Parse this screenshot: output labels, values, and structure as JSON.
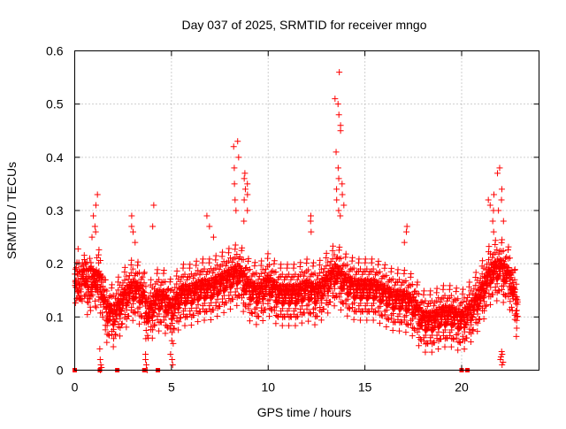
{
  "chart_data": {
    "type": "scatter",
    "title": "Day 037 of 2025, SRMTID for receiver mngo",
    "xlabel": "GPS time / hours",
    "ylabel": "SRMTID / TECUs",
    "xlim": [
      0,
      24
    ],
    "ylim": [
      0,
      0.6
    ],
    "x_ticks": [
      0,
      5,
      10,
      15,
      20
    ],
    "x_tick_labels": [
      "0",
      "5",
      "10",
      "15",
      "20"
    ],
    "y_ticks": [
      0,
      0.1,
      0.2,
      0.3,
      0.4,
      0.5,
      0.6
    ],
    "y_tick_labels": [
      "0",
      "0.1",
      "0.2",
      "0.3",
      "0.4",
      "0.5",
      "0.6"
    ],
    "grid": true,
    "marker": "plus",
    "series": [
      {
        "name": "SRMTID",
        "color": "#ff0000",
        "trend": [
          {
            "x": 0.0,
            "y": 0.16
          },
          {
            "x": 0.5,
            "y": 0.17
          },
          {
            "x": 1.0,
            "y": 0.15
          },
          {
            "x": 1.3,
            "y": 0.17
          },
          {
            "x": 1.6,
            "y": 0.11
          },
          {
            "x": 2.0,
            "y": 0.1
          },
          {
            "x": 2.5,
            "y": 0.13
          },
          {
            "x": 3.0,
            "y": 0.15
          },
          {
            "x": 3.5,
            "y": 0.14
          },
          {
            "x": 3.8,
            "y": 0.1
          },
          {
            "x": 4.2,
            "y": 0.13
          },
          {
            "x": 4.6,
            "y": 0.13
          },
          {
            "x": 5.0,
            "y": 0.11
          },
          {
            "x": 5.5,
            "y": 0.14
          },
          {
            "x": 6.0,
            "y": 0.14
          },
          {
            "x": 6.5,
            "y": 0.15
          },
          {
            "x": 7.0,
            "y": 0.15
          },
          {
            "x": 7.5,
            "y": 0.16
          },
          {
            "x": 8.0,
            "y": 0.17
          },
          {
            "x": 8.5,
            "y": 0.18
          },
          {
            "x": 9.0,
            "y": 0.15
          },
          {
            "x": 9.5,
            "y": 0.14
          },
          {
            "x": 10.0,
            "y": 0.16
          },
          {
            "x": 10.5,
            "y": 0.14
          },
          {
            "x": 11.0,
            "y": 0.14
          },
          {
            "x": 11.5,
            "y": 0.14
          },
          {
            "x": 12.0,
            "y": 0.15
          },
          {
            "x": 12.5,
            "y": 0.14
          },
          {
            "x": 13.0,
            "y": 0.16
          },
          {
            "x": 13.5,
            "y": 0.18
          },
          {
            "x": 14.0,
            "y": 0.16
          },
          {
            "x": 14.5,
            "y": 0.15
          },
          {
            "x": 15.0,
            "y": 0.15
          },
          {
            "x": 15.5,
            "y": 0.15
          },
          {
            "x": 16.0,
            "y": 0.14
          },
          {
            "x": 16.5,
            "y": 0.13
          },
          {
            "x": 17.0,
            "y": 0.13
          },
          {
            "x": 17.5,
            "y": 0.12
          },
          {
            "x": 18.0,
            "y": 0.09
          },
          {
            "x": 18.5,
            "y": 0.09
          },
          {
            "x": 19.0,
            "y": 0.1
          },
          {
            "x": 19.5,
            "y": 0.1
          },
          {
            "x": 20.0,
            "y": 0.09
          },
          {
            "x": 20.5,
            "y": 0.11
          },
          {
            "x": 21.0,
            "y": 0.14
          },
          {
            "x": 21.5,
            "y": 0.18
          },
          {
            "x": 22.0,
            "y": 0.19
          },
          {
            "x": 22.5,
            "y": 0.17
          },
          {
            "x": 22.9,
            "y": 0.11
          }
        ],
        "spread": 0.04,
        "peaks": [
          {
            "x": 1.0,
            "values": [
              0.33,
              0.31,
              0.29,
              0.27,
              0.25,
              0.26
            ]
          },
          {
            "x": 3.0,
            "values": [
              0.29,
              0.27,
              0.26,
              0.24
            ]
          },
          {
            "x": 4.1,
            "values": [
              0.31,
              0.27
            ]
          },
          {
            "x": 7.0,
            "values": [
              0.29,
              0.27,
              0.25
            ]
          },
          {
            "x": 8.3,
            "values": [
              0.43,
              0.42,
              0.4,
              0.38,
              0.35,
              0.32,
              0.3
            ]
          },
          {
            "x": 8.8,
            "values": [
              0.37,
              0.36,
              0.35,
              0.34,
              0.33,
              0.32,
              0.3,
              0.28
            ]
          },
          {
            "x": 12.3,
            "values": [
              0.29,
              0.28,
              0.26
            ]
          },
          {
            "x": 13.6,
            "values": [
              0.56,
              0.51,
              0.5,
              0.48,
              0.46,
              0.45,
              0.41,
              0.38,
              0.36,
              0.34,
              0.32,
              0.3
            ]
          },
          {
            "x": 13.8,
            "values": [
              0.35,
              0.33,
              0.31,
              0.29
            ]
          },
          {
            "x": 17.0,
            "values": [
              0.27,
              0.26,
              0.24
            ]
          },
          {
            "x": 21.5,
            "values": [
              0.33,
              0.32,
              0.31,
              0.3,
              0.28,
              0.26
            ]
          },
          {
            "x": 22.0,
            "values": [
              0.38,
              0.37,
              0.34,
              0.32,
              0.3,
              0.28
            ]
          }
        ],
        "low_values": [
          {
            "x": 1.3,
            "values": [
              0.01,
              0.005,
              0.0,
              0.02,
              0.04
            ]
          },
          {
            "x": 3.7,
            "values": [
              0.03,
              0.02,
              0.01,
              0.0
            ]
          },
          {
            "x": 5.0,
            "values": [
              0.02,
              0.01,
              0.03,
              0.05
            ]
          },
          {
            "x": 22.1,
            "values": [
              0.03,
              0.02,
              0.01,
              0.015,
              0.025,
              0.035
            ]
          }
        ],
        "zero_markers": [
          0.0,
          1.3,
          2.2,
          3.6,
          4.3,
          20.0,
          20.3
        ]
      }
    ]
  }
}
